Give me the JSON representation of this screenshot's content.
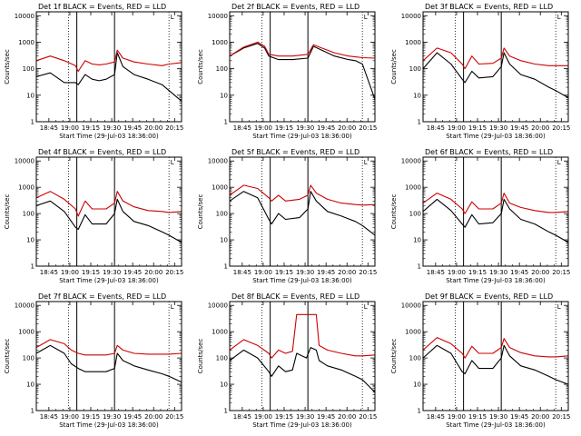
{
  "colors": {
    "events": "#000000",
    "lld": "#cc0000",
    "axis": "#000000",
    "background": "#ffffff"
  },
  "shared": {
    "ylabel": "Counts/sec",
    "xlabel": "Start Time (29-Jul-03 18:36:00)",
    "y_ticks": [
      "1",
      "10",
      "100",
      "1000",
      "10000"
    ],
    "y_tick_values": [
      1,
      10,
      100,
      1000,
      10000
    ],
    "ylim": [
      1,
      14000
    ],
    "xlim_minutes": [
      0,
      104
    ],
    "dotted_lines_at_minutes": [
      23,
      95
    ],
    "solid_lines_at_minutes": [
      29,
      56
    ],
    "legend_marker": "L"
  },
  "chart_data": [
    {
      "type": "line",
      "title": "Det 1f BLACK = Events, RED = LLD",
      "x_tick_labels": [
        "18:45",
        "19:00",
        "19:15",
        "19:30",
        "19:45",
        "20:00",
        "20:15"
      ],
      "x": [
        0,
        10,
        20,
        28,
        30,
        35,
        40,
        45,
        50,
        56,
        58,
        62,
        70,
        80,
        90,
        95,
        104
      ],
      "series": [
        {
          "values": [
            50,
            70,
            30,
            30,
            25,
            60,
            40,
            35,
            40,
            60,
            400,
            120,
            60,
            40,
            25,
            15,
            6
          ],
          "color": "#000000"
        },
        {
          "values": [
            200,
            300,
            200,
            130,
            80,
            200,
            150,
            140,
            150,
            180,
            500,
            250,
            180,
            150,
            130,
            150,
            170
          ],
          "color": "#cc0000"
        }
      ]
    },
    {
      "type": "line",
      "title": "Det 2f BLACK = Events, RED = LLD",
      "x_tick_labels": [
        "18:45",
        "19:00",
        "19:15",
        "19:30",
        "19:45",
        "20:00",
        "20:15"
      ],
      "x": [
        0,
        10,
        20,
        25,
        28,
        35,
        45,
        56,
        60,
        66,
        75,
        85,
        90,
        95,
        104
      ],
      "series": [
        {
          "values": [
            300,
            600,
            900,
            600,
            300,
            220,
            220,
            250,
            700,
            500,
            300,
            220,
            200,
            150,
            7
          ],
          "color": "#000000"
        },
        {
          "values": [
            300,
            650,
            1000,
            700,
            350,
            300,
            300,
            350,
            800,
            600,
            400,
            300,
            280,
            260,
            250
          ],
          "color": "#cc0000"
        }
      ]
    },
    {
      "type": "line",
      "title": "Det 3f BLACK = Events, RED = LLD",
      "x_tick_labels": [
        "18:45",
        "19:00",
        "19:15",
        "19:30",
        "19:45",
        "20:00",
        "20:15"
      ],
      "x": [
        0,
        10,
        20,
        28,
        30,
        35,
        40,
        50,
        56,
        58,
        62,
        70,
        80,
        90,
        95,
        104
      ],
      "series": [
        {
          "values": [
            100,
            400,
            150,
            40,
            30,
            80,
            45,
            50,
            120,
            400,
            150,
            60,
            40,
            20,
            15,
            8
          ],
          "color": "#000000"
        },
        {
          "values": [
            200,
            600,
            400,
            150,
            100,
            300,
            150,
            160,
            250,
            600,
            300,
            200,
            150,
            130,
            130,
            130
          ],
          "color": "#cc0000"
        }
      ]
    },
    {
      "type": "line",
      "title": "Det 4f BLACK = Events, RED = LLD",
      "x_tick_labels": [
        "18:45",
        "19:00",
        "19:15",
        "19:30",
        "19:45",
        "20:00",
        "20:15"
      ],
      "x": [
        0,
        10,
        20,
        28,
        30,
        35,
        40,
        50,
        56,
        58,
        62,
        70,
        80,
        90,
        95,
        104
      ],
      "series": [
        {
          "values": [
            200,
            300,
            120,
            30,
            25,
            90,
            40,
            40,
            100,
            350,
            120,
            50,
            35,
            20,
            15,
            8
          ],
          "color": "#000000"
        },
        {
          "values": [
            400,
            700,
            350,
            150,
            80,
            300,
            150,
            150,
            250,
            700,
            300,
            180,
            130,
            120,
            110,
            120
          ],
          "color": "#cc0000"
        }
      ]
    },
    {
      "type": "line",
      "title": "Det 5f BLACK = Events, RED = LLD",
      "x_tick_labels": [
        "18:45",
        "19:00",
        "19:15",
        "19:30",
        "19:45",
        "20:00",
        "20:15"
      ],
      "x": [
        0,
        10,
        20,
        28,
        30,
        35,
        40,
        50,
        56,
        58,
        62,
        70,
        80,
        90,
        95,
        104
      ],
      "series": [
        {
          "values": [
            300,
            700,
            400,
            60,
            40,
            100,
            60,
            70,
            150,
            700,
            300,
            120,
            80,
            50,
            35,
            15
          ],
          "color": "#000000"
        },
        {
          "values": [
            500,
            1200,
            900,
            400,
            300,
            500,
            300,
            350,
            500,
            1200,
            600,
            350,
            250,
            220,
            210,
            220
          ],
          "color": "#cc0000"
        }
      ]
    },
    {
      "type": "line",
      "title": "Det 6f BLACK = Events, RED = LLD",
      "x_tick_labels": [
        "18:45",
        "19:00",
        "19:15",
        "19:30",
        "19:45",
        "20:00",
        "20:15"
      ],
      "x": [
        0,
        10,
        20,
        28,
        30,
        35,
        40,
        50,
        56,
        58,
        62,
        70,
        80,
        90,
        95,
        104
      ],
      "series": [
        {
          "values": [
            120,
            350,
            130,
            40,
            30,
            90,
            40,
            45,
            100,
            350,
            150,
            60,
            40,
            20,
            15,
            8
          ],
          "color": "#000000"
        },
        {
          "values": [
            250,
            600,
            350,
            150,
            100,
            280,
            150,
            150,
            250,
            600,
            250,
            170,
            130,
            110,
            110,
            120
          ],
          "color": "#cc0000"
        }
      ]
    },
    {
      "type": "line",
      "title": "Det 7f BLACK = Events, RED = LLD",
      "x_tick_labels": [
        "18:45",
        "19:00",
        "19:15",
        "19:30",
        "19:45",
        "20:00",
        "20:15"
      ],
      "x": [
        0,
        10,
        20,
        25,
        30,
        35,
        40,
        50,
        56,
        58,
        62,
        70,
        80,
        90,
        95,
        104
      ],
      "series": [
        {
          "values": [
            150,
            300,
            150,
            60,
            40,
            30,
            30,
            30,
            40,
            150,
            80,
            50,
            35,
            25,
            20,
            12
          ],
          "color": "#000000"
        },
        {
          "values": [
            250,
            500,
            350,
            200,
            150,
            130,
            130,
            130,
            150,
            300,
            200,
            150,
            140,
            140,
            140,
            150
          ],
          "color": "#cc0000"
        }
      ]
    },
    {
      "type": "line",
      "title": "Det 8f BLACK = Events, RED = LLD",
      "x_tick_labels": [
        "18:45",
        "19:00",
        "19:15",
        "19:30",
        "19:45",
        "20:00",
        "20:15"
      ],
      "x": [
        0,
        10,
        20,
        28,
        30,
        35,
        40,
        45,
        48,
        55,
        58,
        62,
        64,
        70,
        80,
        90,
        95,
        104
      ],
      "series": [
        {
          "values": [
            80,
            200,
            100,
            30,
            20,
            50,
            30,
            35,
            150,
            100,
            250,
            200,
            80,
            50,
            35,
            20,
            15,
            5
          ],
          "color": "#000000"
        },
        {
          "values": [
            200,
            500,
            300,
            150,
            100,
            200,
            150,
            180,
            4500,
            4500,
            4500,
            4500,
            300,
            200,
            150,
            120,
            120,
            130
          ],
          "color": "#cc0000"
        }
      ]
    },
    {
      "type": "line",
      "title": "Det 9f BLACK = Events, RED = LLD",
      "x_tick_labels": [
        "18:45",
        "19:00",
        "19:15",
        "19:30",
        "19:45",
        "20:00",
        "20:15"
      ],
      "x": [
        0,
        10,
        20,
        28,
        30,
        35,
        40,
        50,
        56,
        58,
        62,
        70,
        80,
        90,
        95,
        104
      ],
      "series": [
        {
          "values": [
            100,
            300,
            150,
            30,
            25,
            80,
            40,
            40,
            100,
            300,
            120,
            50,
            35,
            20,
            15,
            10
          ],
          "color": "#000000"
        },
        {
          "values": [
            200,
            600,
            350,
            150,
            100,
            280,
            150,
            150,
            250,
            550,
            250,
            160,
            120,
            110,
            110,
            120
          ],
          "color": "#cc0000"
        }
      ]
    }
  ]
}
